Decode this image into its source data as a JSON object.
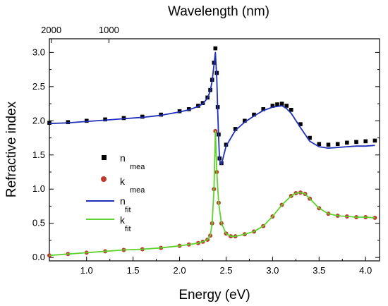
{
  "chart_data": {
    "type": "scatter",
    "title": "",
    "xlabel": "Energy (eV)",
    "ylabel": "Refractive index",
    "top_xlabel": "Wavelength (nm)",
    "xlim": [
      0.6,
      4.15
    ],
    "ylim": [
      -0.05,
      3.2
    ],
    "x_ticks": [
      1.0,
      1.5,
      2.0,
      2.5,
      3.0,
      3.5,
      4.0
    ],
    "x_tick_labels": [
      "1.0",
      "1.5",
      "2.0",
      "2.5",
      "3.0",
      "3.5",
      "4.0"
    ],
    "y_ticks": [
      0.0,
      0.5,
      1.0,
      1.5,
      2.0,
      2.5,
      3.0
    ],
    "y_tick_labels": [
      "0.0",
      "0.5",
      "1.0",
      "1.5",
      "2.0",
      "2.5",
      "3.0"
    ],
    "top_ticks": [
      {
        "label": "2000",
        "energy": 0.62
      },
      {
        "label": "1000",
        "energy": 1.24
      }
    ],
    "legend_position": "middle-left",
    "series": [
      {
        "name": "n mea",
        "main": "n",
        "sub": "mea",
        "style": "markers",
        "marker": "square",
        "color": "#000000",
        "x": [
          0.6,
          0.8,
          1.0,
          1.2,
          1.4,
          1.6,
          1.8,
          2.0,
          2.1,
          2.2,
          2.25,
          2.3,
          2.33,
          2.35,
          2.37,
          2.385,
          2.4,
          2.41,
          2.42,
          2.43,
          2.45,
          2.5,
          2.6,
          2.7,
          2.8,
          2.9,
          3.0,
          3.05,
          3.1,
          3.15,
          3.2,
          3.3,
          3.4,
          3.5,
          3.6,
          3.7,
          3.8,
          3.9,
          4.0,
          4.1
        ],
        "y": [
          1.97,
          1.98,
          2.0,
          2.02,
          2.04,
          2.06,
          2.09,
          2.14,
          2.17,
          2.22,
          2.26,
          2.34,
          2.45,
          2.6,
          2.85,
          3.06,
          2.7,
          2.2,
          1.8,
          1.45,
          1.38,
          1.65,
          1.88,
          2.0,
          2.09,
          2.17,
          2.22,
          2.24,
          2.25,
          2.22,
          2.16,
          1.95,
          1.75,
          1.66,
          1.65,
          1.66,
          1.68,
          1.69,
          1.7,
          1.71
        ]
      },
      {
        "name": "k mea",
        "main": "k",
        "sub": "mea",
        "style": "markers",
        "marker": "circle",
        "color": "#c0392b",
        "x": [
          0.6,
          0.8,
          1.0,
          1.2,
          1.4,
          1.6,
          1.8,
          2.0,
          2.1,
          2.2,
          2.25,
          2.3,
          2.33,
          2.35,
          2.37,
          2.385,
          2.4,
          2.42,
          2.45,
          2.5,
          2.55,
          2.6,
          2.7,
          2.8,
          2.9,
          3.0,
          3.1,
          3.2,
          3.25,
          3.3,
          3.35,
          3.4,
          3.5,
          3.6,
          3.7,
          3.8,
          3.9,
          4.0,
          4.1
        ],
        "y": [
          0.03,
          0.05,
          0.07,
          0.09,
          0.11,
          0.12,
          0.14,
          0.17,
          0.19,
          0.21,
          0.23,
          0.26,
          0.32,
          0.5,
          1.0,
          1.85,
          1.25,
          0.8,
          0.5,
          0.35,
          0.31,
          0.31,
          0.34,
          0.38,
          0.46,
          0.6,
          0.77,
          0.9,
          0.94,
          0.95,
          0.93,
          0.86,
          0.72,
          0.64,
          0.61,
          0.6,
          0.59,
          0.59,
          0.58
        ]
      },
      {
        "name": "n fit",
        "main": "n",
        "sub": "fit",
        "style": "line",
        "color": "#1f2fb8",
        "x": [
          0.6,
          0.8,
          1.0,
          1.2,
          1.4,
          1.6,
          1.8,
          2.0,
          2.1,
          2.2,
          2.25,
          2.3,
          2.33,
          2.35,
          2.37,
          2.385,
          2.4,
          2.41,
          2.42,
          2.43,
          2.45,
          2.5,
          2.6,
          2.7,
          2.8,
          2.9,
          3.0,
          3.05,
          3.1,
          3.15,
          3.2,
          3.3,
          3.4,
          3.5,
          3.6,
          3.7,
          3.8,
          3.9,
          4.0,
          4.1
        ],
        "y": [
          1.96,
          1.97,
          1.99,
          2.01,
          2.03,
          2.05,
          2.08,
          2.13,
          2.16,
          2.21,
          2.25,
          2.33,
          2.44,
          2.58,
          2.82,
          3.0,
          2.62,
          2.15,
          1.75,
          1.42,
          1.36,
          1.63,
          1.86,
          1.98,
          2.07,
          2.15,
          2.2,
          2.21,
          2.22,
          2.18,
          2.11,
          1.9,
          1.7,
          1.62,
          1.6,
          1.61,
          1.62,
          1.63,
          1.63,
          1.64
        ]
      },
      {
        "name": "k fit",
        "main": "k",
        "sub": "fit",
        "style": "line",
        "color": "#5ed22e",
        "x": [
          0.6,
          0.8,
          1.0,
          1.2,
          1.4,
          1.6,
          1.8,
          2.0,
          2.1,
          2.2,
          2.25,
          2.3,
          2.33,
          2.35,
          2.37,
          2.385,
          2.4,
          2.42,
          2.45,
          2.5,
          2.55,
          2.6,
          2.7,
          2.8,
          2.9,
          3.0,
          3.1,
          3.2,
          3.25,
          3.3,
          3.35,
          3.4,
          3.5,
          3.6,
          3.7,
          3.8,
          3.9,
          4.0,
          4.1
        ],
        "y": [
          0.03,
          0.05,
          0.07,
          0.09,
          0.11,
          0.12,
          0.14,
          0.17,
          0.19,
          0.21,
          0.23,
          0.26,
          0.32,
          0.5,
          1.0,
          1.85,
          1.25,
          0.8,
          0.5,
          0.35,
          0.31,
          0.31,
          0.34,
          0.38,
          0.46,
          0.6,
          0.77,
          0.9,
          0.94,
          0.95,
          0.93,
          0.86,
          0.72,
          0.64,
          0.61,
          0.6,
          0.59,
          0.59,
          0.58
        ]
      }
    ]
  }
}
